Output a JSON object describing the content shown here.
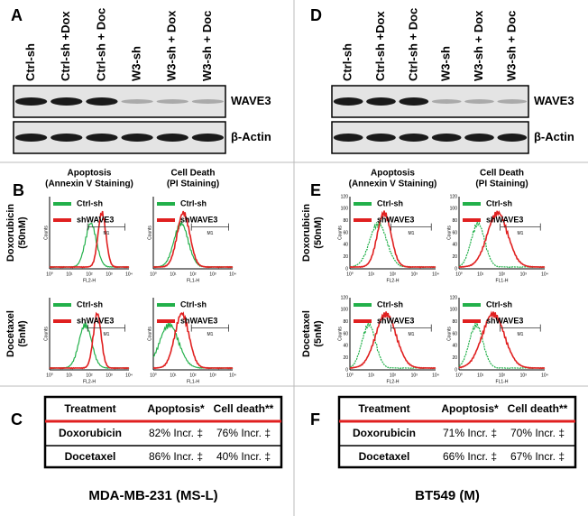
{
  "panels": [
    {
      "blot": {
        "label": "A",
        "lanes": [
          "Ctrl-sh",
          "Ctrl-sh +Dox",
          "Ctrl-sh + Doc",
          "W3-sh",
          "W3-sh + Dox",
          "W3-sh + Doc"
        ],
        "bands": [
          "WAVE3",
          "β-Actin"
        ]
      },
      "flow": {
        "label": "B",
        "columns": [
          [
            "Apoptosis",
            "(Annexin V Staining)"
          ],
          [
            "Cell Death",
            "(PI Staining)"
          ]
        ],
        "rows": [
          [
            "Doxorubicin",
            "(50nM)"
          ],
          [
            "Docetaxel",
            "(5nM)"
          ]
        ],
        "legend": [
          "Ctrl-sh",
          "shWAVE3"
        ],
        "x_labels": [
          "FL2-H",
          "FL1-H"
        ],
        "gate": "M1",
        "y_label": "Counts",
        "x_ticks": [
          "10⁰",
          "10¹",
          "10²",
          "10³",
          "10⁴"
        ]
      },
      "table": {
        "label": "C",
        "header": [
          "Treatment",
          "Apoptosis*",
          "Cell death**"
        ],
        "rows": [
          [
            "Doxorubicin",
            "82% Incr. ‡",
            "76% Incr. ‡"
          ],
          [
            "Docetaxel",
            "86% Incr. ‡",
            "40% Incr. ‡"
          ]
        ]
      },
      "caption": "MDA-MB-231 (MS-L)"
    },
    {
      "blot": {
        "label": "D",
        "lanes": [
          "Ctrl-sh",
          "Ctrl-sh +Dox",
          "Ctrl-sh + Doc",
          "W3-sh",
          "W3-sh + Dox",
          "W3-sh + Doc"
        ],
        "bands": [
          "WAVE3",
          "β-Actin"
        ]
      },
      "flow": {
        "label": "E",
        "columns": [
          [
            "Apoptosis",
            "(Annexin V Staining)"
          ],
          [
            "Cell Death",
            "(PI Staining)"
          ]
        ],
        "rows": [
          [
            "Doxorubicin",
            "(50nM)"
          ],
          [
            "Docetaxel",
            "(5nM)"
          ]
        ],
        "legend": [
          "Ctrl-sh",
          "shWAVE3"
        ],
        "x_labels": [
          "FL2-H",
          "FL1-H"
        ],
        "gate": "M1",
        "y_label": "Counts",
        "x_ticks": [
          "10⁰",
          "10¹",
          "10²",
          "10³",
          "10⁴"
        ],
        "y_ticks": [
          "0",
          "20",
          "40",
          "60",
          "80",
          "100",
          "120"
        ]
      },
      "table": {
        "label": "F",
        "header": [
          "Treatment",
          "Apoptosis*",
          "Cell death**"
        ],
        "rows": [
          [
            "Doxorubicin",
            "71% Incr. ‡",
            "70% Incr. ‡"
          ],
          [
            "Docetaxel",
            "66% Incr. ‡",
            "67% Incr. ‡"
          ]
        ]
      },
      "caption": "BT549 (M)"
    }
  ]
}
